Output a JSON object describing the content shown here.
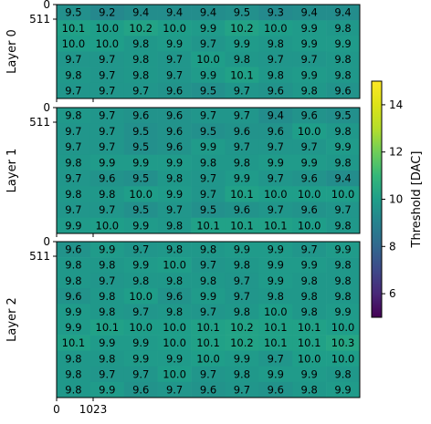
{
  "chart_data": {
    "type": "heatmap",
    "colormap": "viridis",
    "colorbar": {
      "label": "Threshold [DAC]",
      "range": [
        5,
        15
      ],
      "ticks": [
        "6",
        "8",
        "10",
        "12",
        "14"
      ],
      "tick_values": [
        6,
        8,
        10,
        12,
        14
      ]
    },
    "x_ticks": [
      "0",
      "1023"
    ],
    "layers": [
      {
        "name": "Layer 0",
        "y_ticks": [
          "0",
          "511"
        ],
        "rows": [
          [
            9.5,
            9.2,
            9.4,
            9.4,
            9.4,
            9.5,
            9.3,
            9.4,
            9.4
          ],
          [
            10.1,
            10.0,
            10.2,
            10.0,
            9.9,
            10.2,
            10.0,
            9.9,
            9.8
          ],
          [
            10.0,
            10.0,
            9.8,
            9.9,
            9.7,
            9.9,
            9.8,
            9.9,
            9.9
          ],
          [
            9.7,
            9.7,
            9.8,
            9.7,
            10.0,
            9.8,
            9.7,
            9.7,
            9.8
          ],
          [
            9.8,
            9.7,
            9.8,
            9.7,
            9.9,
            10.1,
            9.8,
            9.9,
            9.8
          ],
          [
            9.7,
            9.7,
            9.7,
            9.6,
            9.5,
            9.7,
            9.6,
            9.8,
            9.6
          ]
        ]
      },
      {
        "name": "Layer 1",
        "y_ticks": [
          "0",
          "511"
        ],
        "rows": [
          [
            9.8,
            9.7,
            9.6,
            9.6,
            9.7,
            9.7,
            9.4,
            9.6,
            9.5
          ],
          [
            9.7,
            9.7,
            9.5,
            9.6,
            9.5,
            9.6,
            9.6,
            10.0,
            9.8
          ],
          [
            9.7,
            9.7,
            9.5,
            9.6,
            9.9,
            9.7,
            9.7,
            9.7,
            9.9
          ],
          [
            9.8,
            9.9,
            9.9,
            9.9,
            9.8,
            9.8,
            9.9,
            9.9,
            9.8
          ],
          [
            9.7,
            9.6,
            9.5,
            9.8,
            9.7,
            9.9,
            9.7,
            9.6,
            9.4
          ],
          [
            9.8,
            9.8,
            10.0,
            9.9,
            9.7,
            10.1,
            10.0,
            10.0,
            10.0
          ],
          [
            9.7,
            9.7,
            9.5,
            9.7,
            9.5,
            9.6,
            9.7,
            9.6,
            9.7
          ],
          [
            9.9,
            10.0,
            9.9,
            9.8,
            10.1,
            10.1,
            10.1,
            10.0,
            9.8
          ]
        ]
      },
      {
        "name": "Layer 2",
        "y_ticks": [
          "0",
          "511"
        ],
        "rows": [
          [
            9.6,
            9.9,
            9.7,
            9.8,
            9.8,
            9.9,
            9.9,
            9.7,
            9.9
          ],
          [
            9.8,
            9.8,
            9.9,
            10.0,
            9.7,
            9.8,
            9.9,
            9.9,
            9.8
          ],
          [
            9.8,
            9.7,
            9.8,
            9.8,
            9.8,
            9.7,
            9.9,
            9.8,
            9.8
          ],
          [
            9.6,
            9.8,
            10.0,
            9.6,
            9.9,
            9.7,
            9.8,
            9.8,
            9.8
          ],
          [
            9.9,
            9.8,
            9.7,
            9.8,
            9.7,
            9.8,
            10.0,
            9.8,
            9.9
          ],
          [
            9.9,
            10.1,
            10.0,
            10.0,
            10.1,
            10.2,
            10.1,
            10.1,
            10.0
          ],
          [
            10.1,
            9.9,
            9.9,
            10.0,
            10.1,
            10.2,
            10.1,
            10.1,
            10.3
          ],
          [
            9.8,
            9.8,
            9.9,
            9.9,
            10.0,
            9.9,
            9.7,
            10.0,
            10.0
          ],
          [
            9.8,
            9.7,
            9.7,
            10.0,
            9.7,
            9.8,
            9.9,
            9.9,
            9.8
          ],
          [
            9.8,
            9.9,
            9.6,
            9.7,
            9.6,
            9.7,
            9.6,
            9.8,
            9.9
          ]
        ]
      }
    ]
  }
}
